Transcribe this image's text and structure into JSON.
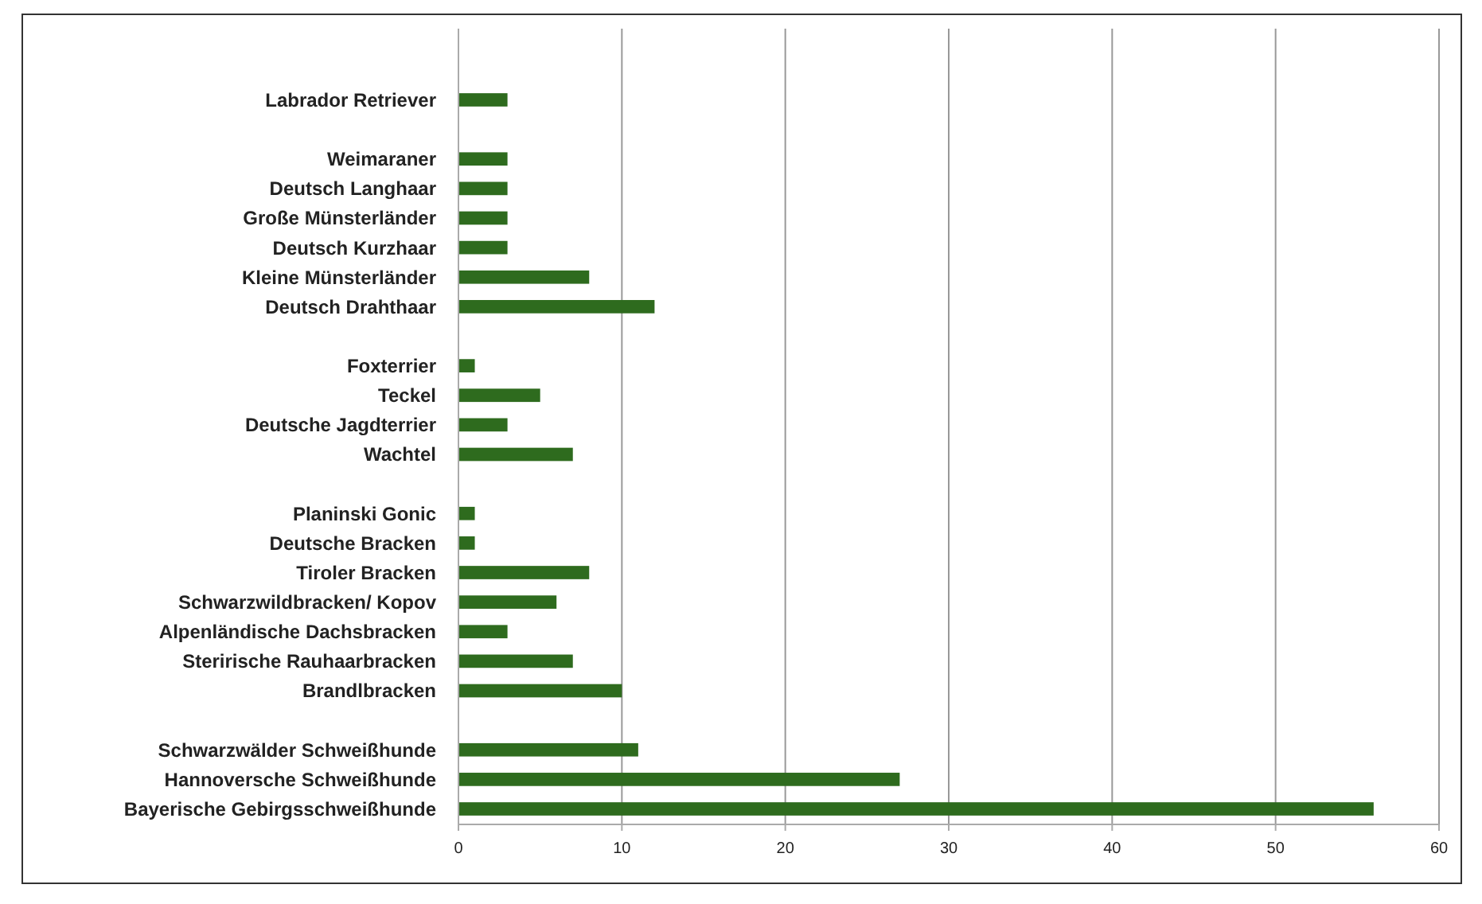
{
  "chart_data": {
    "type": "bar",
    "orientation": "horizontal",
    "categories": [
      "Labrador Retriever",
      null,
      "Weimaraner",
      "Deutsch Langhaar",
      "Große Münsterländer",
      "Deutsch Kurzhaar",
      "Kleine Münsterländer",
      "Deutsch Drahthaar",
      null,
      "Foxterrier",
      "Teckel",
      "Deutsche Jagdterrier",
      "Wachtel",
      null,
      "Planinski Gonic",
      "Deutsche Bracken",
      "Tiroler Bracken",
      "Schwarzwildbracken/ Kopov",
      "Alpenländische Dachsbracken",
      "Sterirische Rauhaarbracken",
      "Brandlbracken",
      null,
      "Schwarzwälder Schweißhunde",
      "Hannoversche Schweißhunde",
      "Bayerische Gebirgsschweißhunde"
    ],
    "values": [
      3,
      null,
      3,
      3,
      3,
      3,
      8,
      12,
      null,
      1,
      5,
      3,
      7,
      null,
      1,
      1,
      8,
      6,
      3,
      7,
      10,
      null,
      11,
      27,
      56
    ],
    "color": "#2e6b1e",
    "xlim": [
      0,
      60
    ],
    "xticks": [
      0,
      10,
      20,
      30,
      40,
      50,
      60
    ],
    "grid": "x"
  }
}
